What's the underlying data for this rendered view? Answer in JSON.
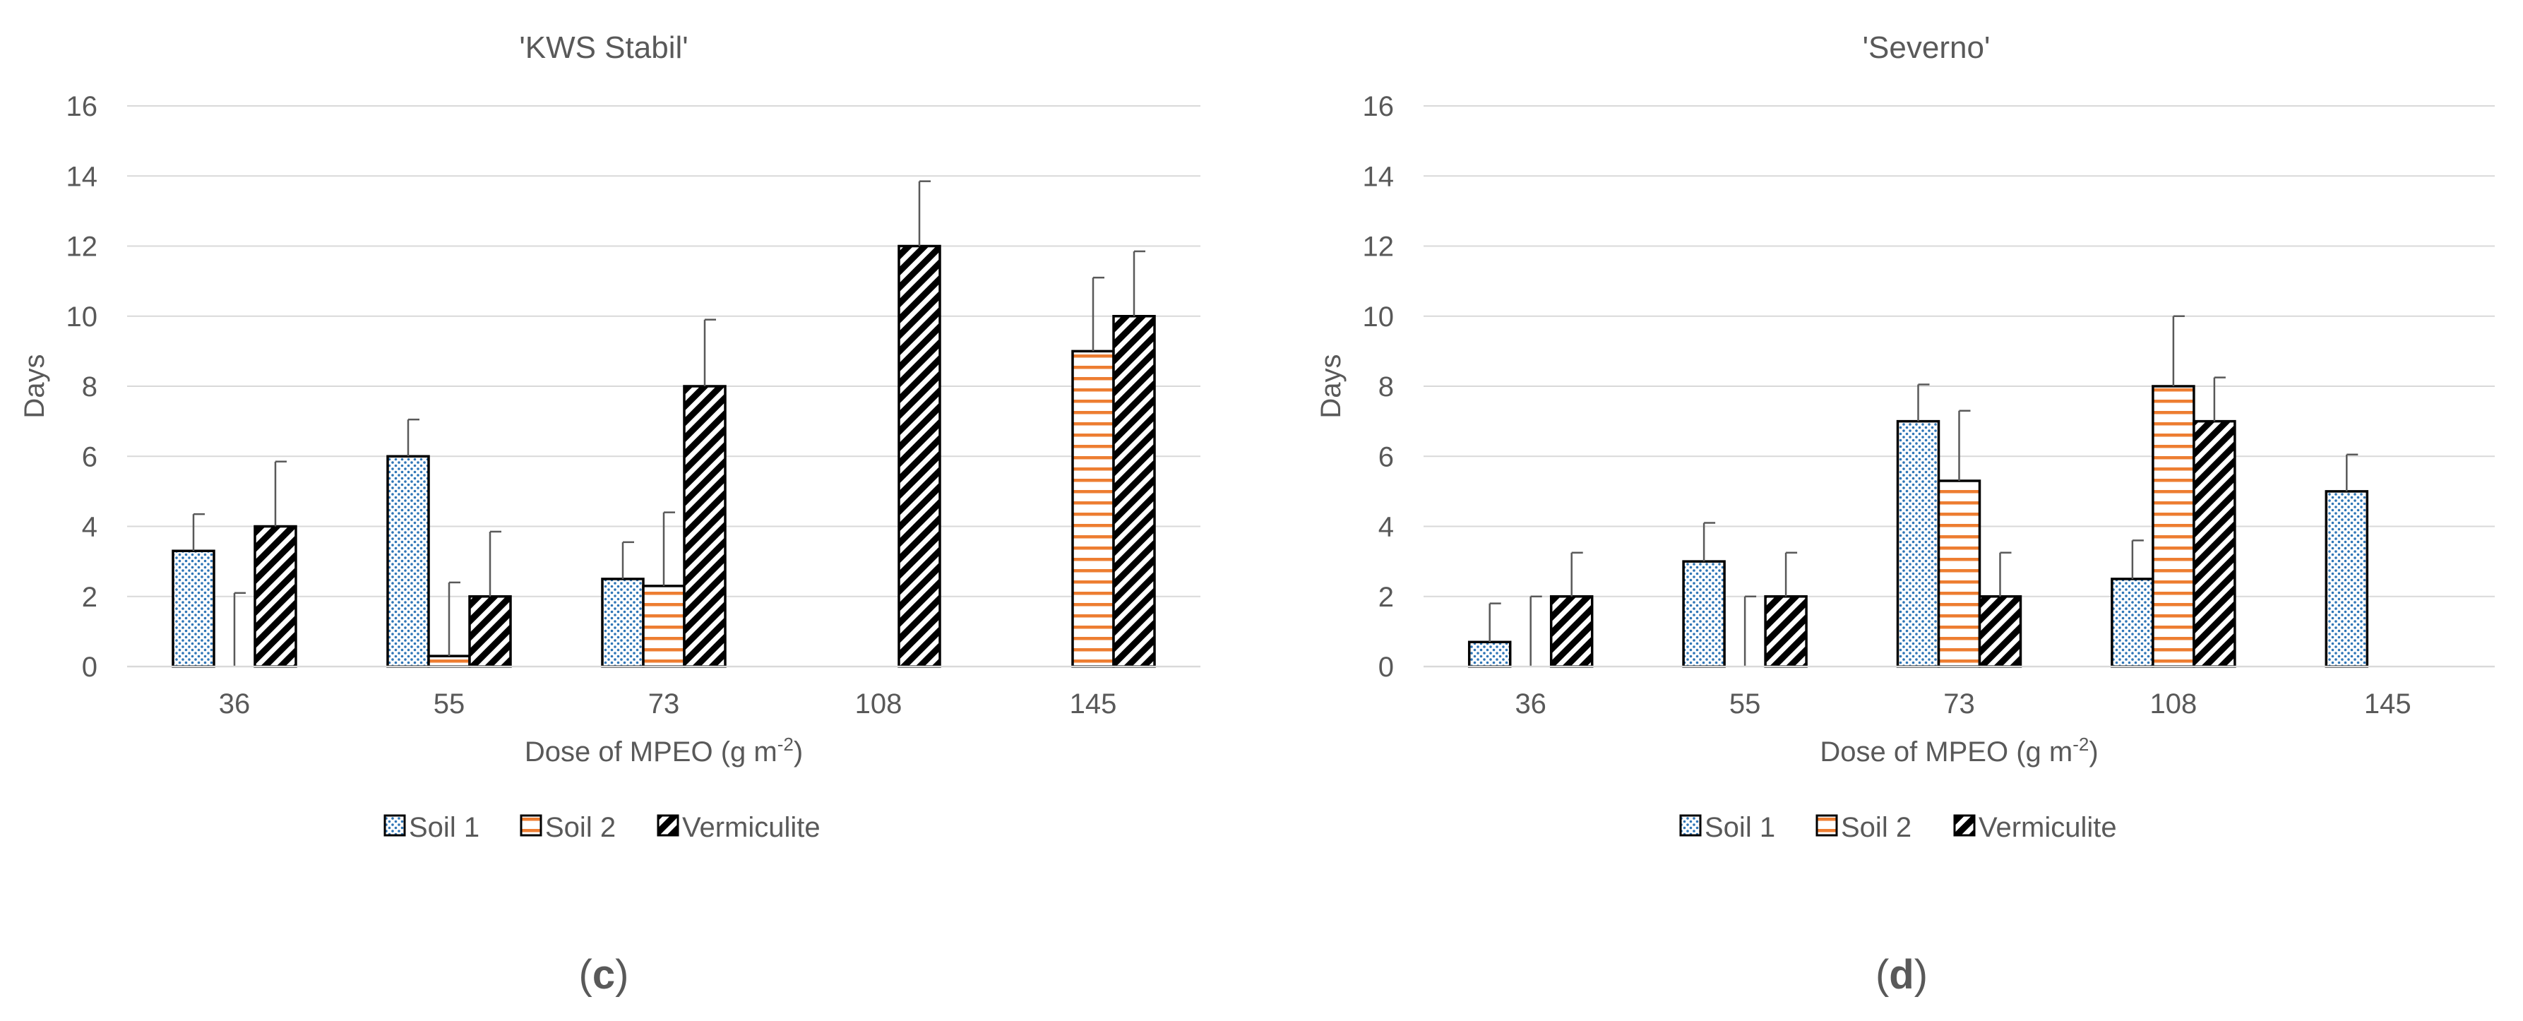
{
  "figure": {
    "panels": [
      {
        "label_prefix": "(",
        "label_letter": "c",
        "label_suffix": ")"
      },
      {
        "label_prefix": "(",
        "label_letter": "d",
        "label_suffix": ")"
      }
    ]
  },
  "colors": {
    "soil1": "#2E75B6",
    "soil2": "#ED7D31",
    "vermiculite": "#000000",
    "axis_text": "#595959",
    "gridline": "#D9D9D9"
  },
  "chart_data": [
    {
      "type": "bar",
      "title": "'KWS Stabil'",
      "xlabel_main": "Dose of MPEO (g m",
      "xlabel_sup": "-2",
      "xlabel_close": ")",
      "ylabel": "Days",
      "ylim": [
        0,
        16
      ],
      "yticks": [
        0,
        2,
        4,
        6,
        8,
        10,
        12,
        14,
        16
      ],
      "grid": true,
      "legend_position": "bottom",
      "categories": [
        "36",
        "55",
        "73",
        "108",
        "145"
      ],
      "series": [
        {
          "name": "Soil 1",
          "pattern": "dots",
          "values": [
            3.3,
            6.0,
            2.5,
            0,
            0
          ],
          "errors": [
            1.05,
            1.05,
            1.05,
            0,
            0
          ]
        },
        {
          "name": "Soil 2",
          "pattern": "hlines",
          "values": [
            0,
            0.3,
            2.3,
            0,
            9.0
          ],
          "errors": [
            2.1,
            2.1,
            2.1,
            0,
            2.1
          ]
        },
        {
          "name": "Vermiculite",
          "pattern": "diag",
          "values": [
            4.0,
            2.0,
            8.0,
            12.0,
            10.0
          ],
          "errors": [
            1.85,
            1.85,
            1.9,
            1.85,
            1.85
          ]
        }
      ]
    },
    {
      "type": "bar",
      "title": "'Severno'",
      "xlabel_main": "Dose of MPEO (g m",
      "xlabel_sup": "-2",
      "xlabel_close": ")",
      "ylabel": "Days",
      "ylim": [
        0,
        16
      ],
      "yticks": [
        0,
        2,
        4,
        6,
        8,
        10,
        12,
        14,
        16
      ],
      "grid": true,
      "legend_position": "bottom",
      "categories": [
        "36",
        "55",
        "73",
        "108",
        "145"
      ],
      "series": [
        {
          "name": "Soil 1",
          "pattern": "dots",
          "values": [
            0.7,
            3.0,
            7.0,
            2.5,
            5.0
          ],
          "errors": [
            1.1,
            1.1,
            1.05,
            1.1,
            1.05
          ]
        },
        {
          "name": "Soil 2",
          "pattern": "hlines",
          "values": [
            0,
            0,
            5.3,
            8.0,
            0
          ],
          "errors": [
            2.0,
            2.0,
            2.0,
            2.0,
            0
          ]
        },
        {
          "name": "Vermiculite",
          "pattern": "diag",
          "values": [
            2.0,
            2.0,
            2.0,
            7.0,
            0
          ],
          "errors": [
            1.25,
            1.25,
            1.25,
            1.25,
            0
          ]
        }
      ]
    }
  ]
}
